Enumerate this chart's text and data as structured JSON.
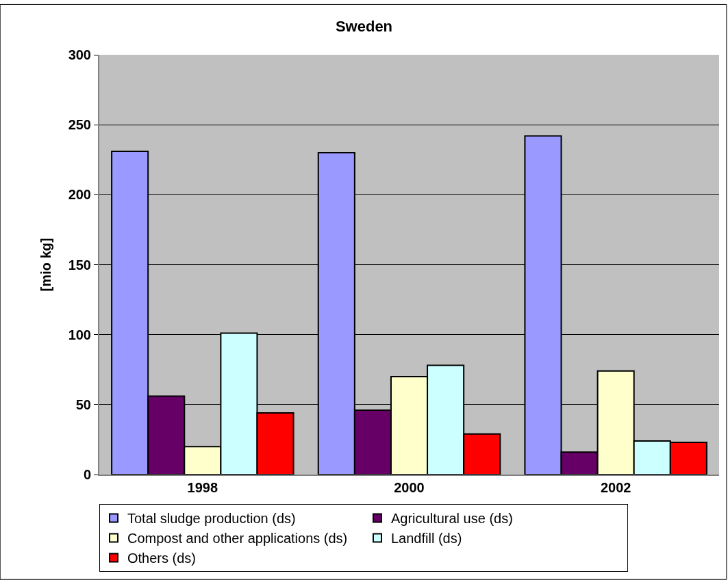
{
  "chart_data": {
    "type": "bar",
    "title": "Sweden",
    "ylabel": "[mio kg]",
    "categories": [
      "1998",
      "2000",
      "2002"
    ],
    "series": [
      {
        "name": "Total sludge production (ds)",
        "color": "#9999ff",
        "values": [
          231,
          230,
          242
        ]
      },
      {
        "name": "Agricultural use (ds)",
        "color": "#660066",
        "values": [
          56,
          46,
          16
        ]
      },
      {
        "name": "Compost and other applications (ds)",
        "color": "#ffffcc",
        "values": [
          20,
          70,
          74
        ]
      },
      {
        "name": "Landfill (ds)",
        "color": "#ccffff",
        "values": [
          101,
          78,
          24
        ]
      },
      {
        "name": "Others (ds)",
        "color": "#ff0000",
        "values": [
          44,
          29,
          23
        ]
      }
    ],
    "ylim": [
      0,
      300
    ],
    "yticks": [
      0,
      50,
      100,
      150,
      200,
      250,
      300
    ],
    "grid": "y",
    "legend": "bottom"
  }
}
